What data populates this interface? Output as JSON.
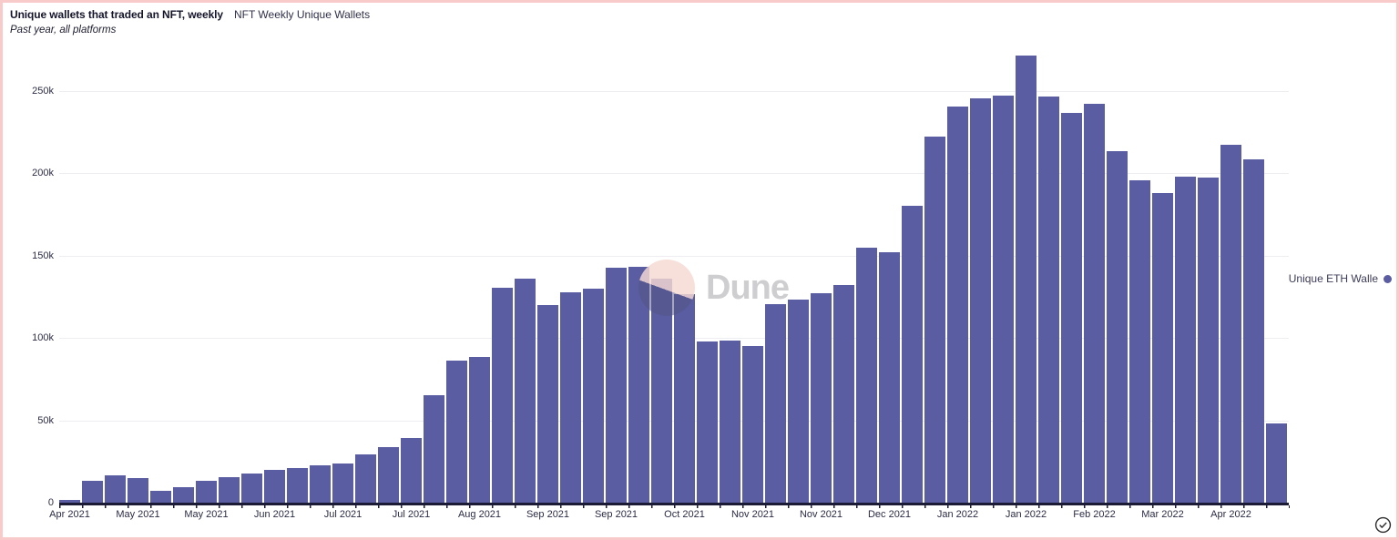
{
  "header": {
    "title": "Unique wallets that traded an NFT, weekly",
    "widget_name": "NFT Weekly Unique Wallets",
    "subtitle": "Past year, all platforms"
  },
  "legend": {
    "label": "Unique ETH Walle"
  },
  "watermark": {
    "text": "Dune"
  },
  "colors": {
    "bar": "#5b5da3",
    "axis": "#1b1b35",
    "grid": "#ededf2",
    "border": "#f8cbca",
    "legend_dot": "#5b5da3",
    "watermark_text": "#c4c4c6"
  },
  "chart_data": {
    "type": "bar",
    "title": "Unique wallets that traded an NFT, weekly",
    "subtitle": "Past year, all platforms",
    "series_label_visible": "Unique ETH Walle",
    "xlabel": "",
    "ylabel": "",
    "ylim": [
      0,
      275000
    ],
    "grid": true,
    "legend_position": "right",
    "values": [
      1500,
      13000,
      16500,
      15000,
      7000,
      9500,
      13500,
      15500,
      17500,
      20000,
      21000,
      22500,
      24000,
      29500,
      33500,
      39500,
      65000,
      86500,
      88500,
      130500,
      136000,
      120000,
      128000,
      130000,
      142500,
      143500,
      136000,
      126500,
      98000,
      98500,
      95000,
      120500,
      123500,
      127000,
      132000,
      155000,
      152000,
      180500,
      222500,
      240500,
      245500,
      247000,
      271500,
      246500,
      236500,
      242500,
      213500,
      196000,
      188000,
      198000,
      197500,
      217500,
      208500,
      48000
    ],
    "x_tick_labels": [
      "Apr 2021",
      "May 2021",
      "May 2021",
      "Jun 2021",
      "Jul 2021",
      "Jul 2021",
      "Aug 2021",
      "Sep 2021",
      "Sep 2021",
      "Oct 2021",
      "Nov 2021",
      "Nov 2021",
      "Dec 2021",
      "Jan 2022",
      "Jan 2022",
      "Feb 2022",
      "Mar 2022",
      "Apr 2022"
    ],
    "ticks_every_n_bars": 3,
    "y_ticks": [
      "0",
      "50k",
      "100k",
      "150k",
      "200k",
      "250k"
    ],
    "y_tick_values": [
      0,
      50000,
      100000,
      150000,
      200000,
      250000
    ]
  }
}
